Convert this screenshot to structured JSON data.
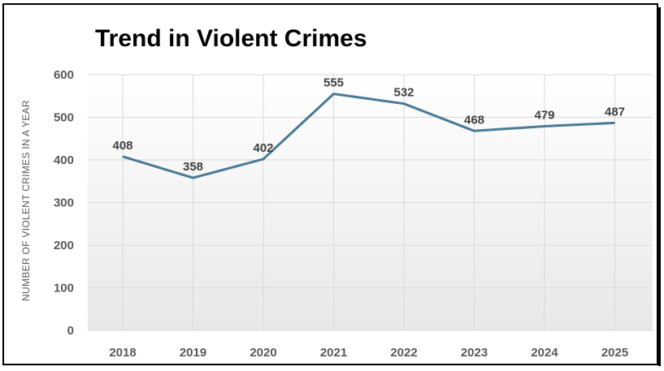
{
  "chart_data": {
    "type": "line",
    "title": "Trend in Violent Crimes",
    "xlabel": "",
    "ylabel": "NUMBER OF VIOLENT CRIMES IN A YEAR",
    "categories": [
      "2018",
      "2019",
      "2020",
      "2021",
      "2022",
      "2023",
      "2024",
      "2025"
    ],
    "series": [
      {
        "values": [
          408,
          358,
          402,
          555,
          532,
          468,
          479,
          487
        ]
      }
    ],
    "ylim": [
      0,
      600
    ],
    "yticks": [
      "0",
      "100",
      "200",
      "300",
      "400",
      "500",
      "600"
    ],
    "data_labels": [
      "408",
      "358",
      "402",
      "555",
      "532",
      "468",
      "479",
      "487"
    ],
    "grid": "both",
    "legend": "none",
    "colors": {
      "line": "#4a7a95",
      "grid": "#d9d9d9",
      "plot_top": "#ffffff",
      "plot_bottom": "#e8e8e8"
    }
  }
}
